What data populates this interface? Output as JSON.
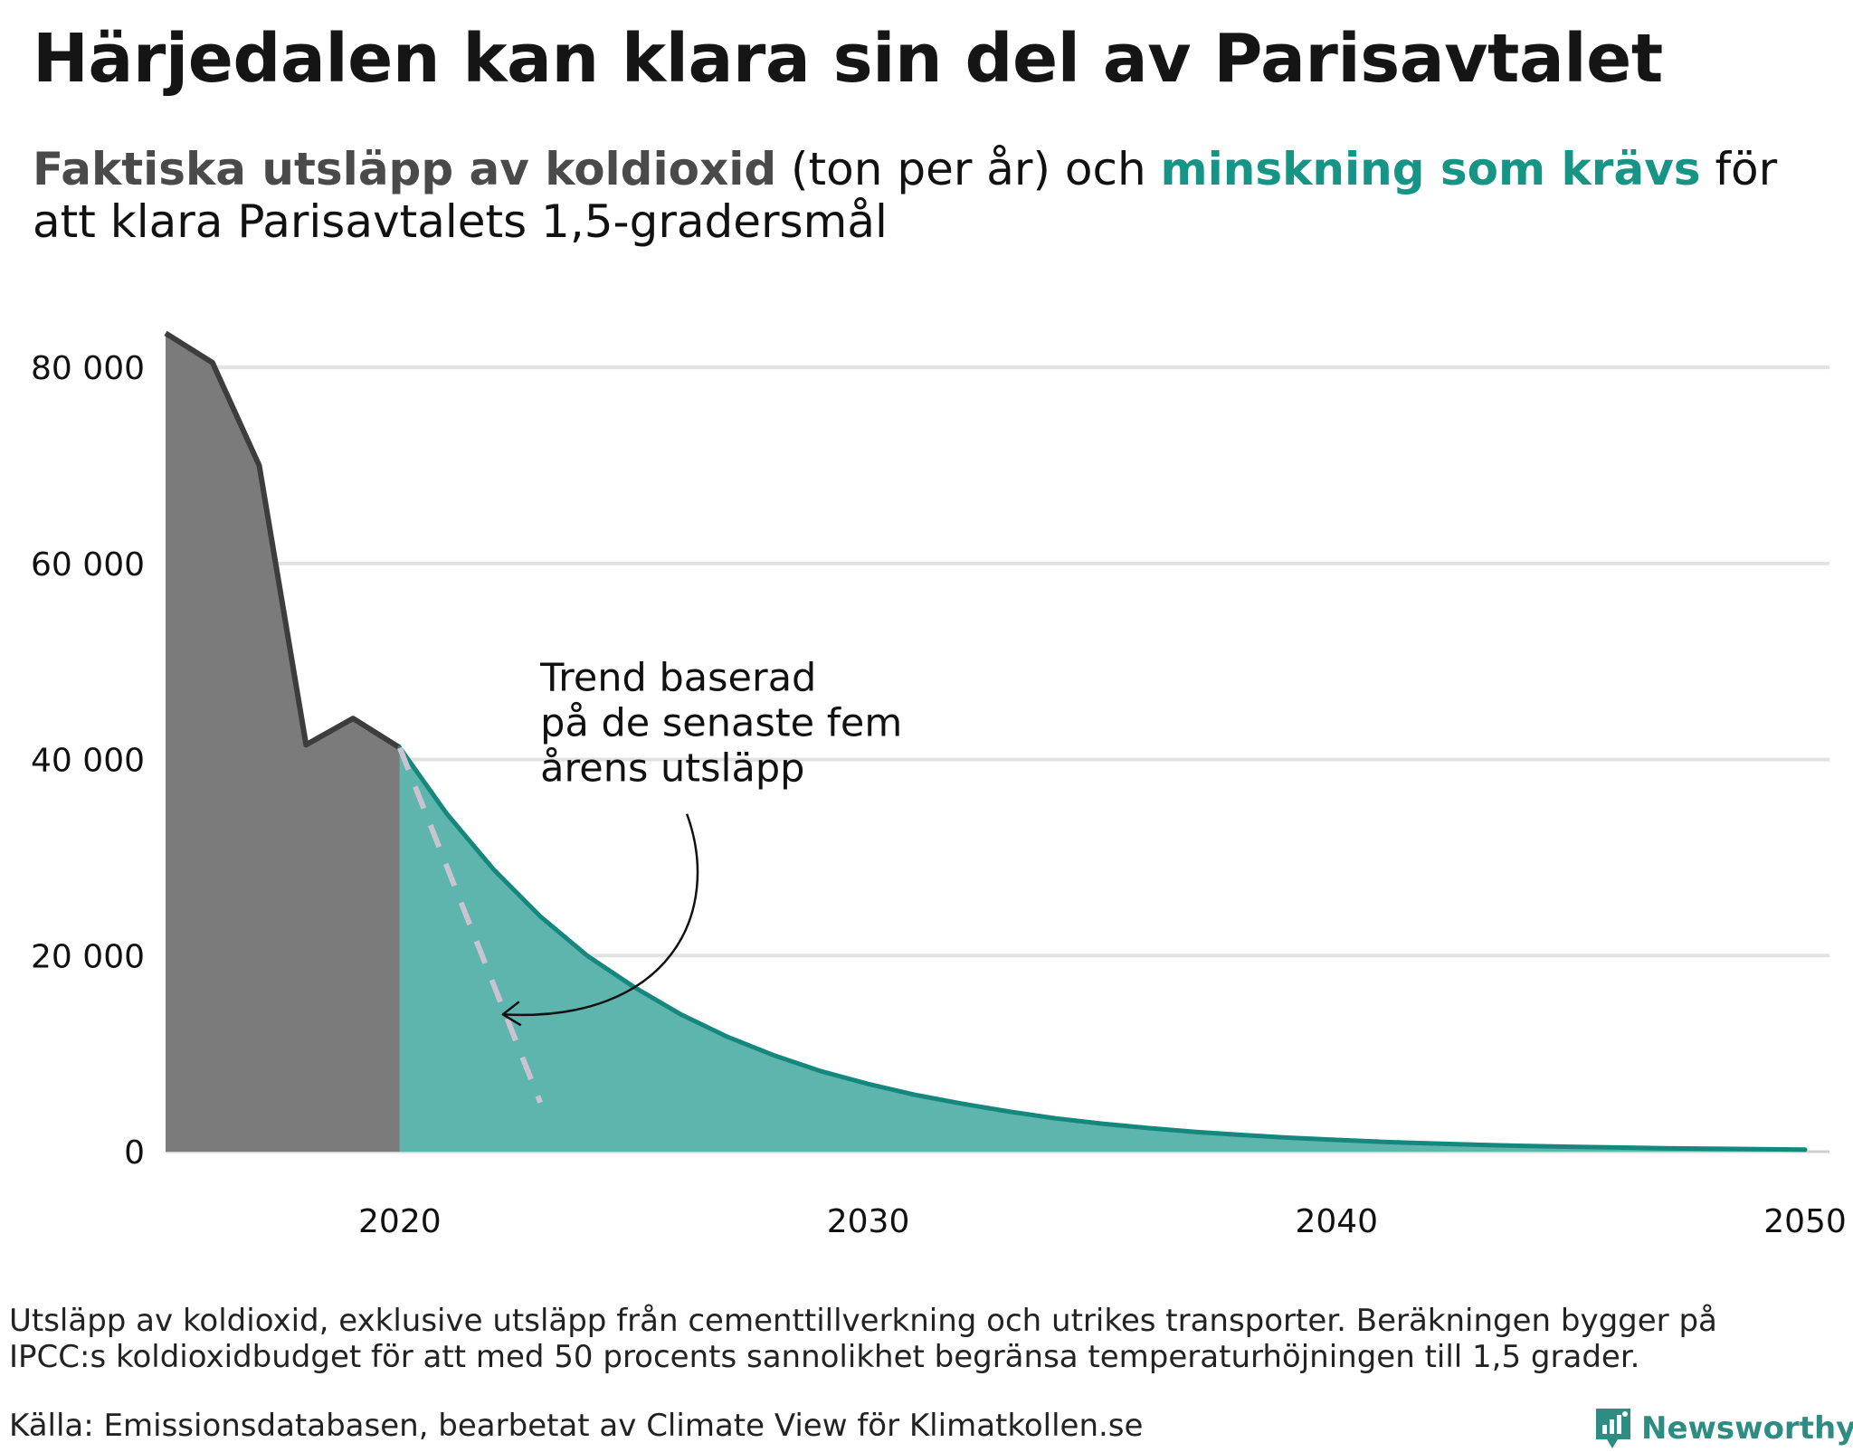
{
  "header": {
    "title": "Härjedalen kan klara sin del av Parisavtalet",
    "subtitle_part1": "Faktiska utsläpp av koldioxid",
    "subtitle_part2": " (ton per år) och ",
    "subtitle_part3": "minskning som krävs",
    "subtitle_part4": " för att klara Parisavtalets 1,5-gradersmål"
  },
  "colors": {
    "actual_fill": "#7b7b7b",
    "actual_line": "#3d3d3d",
    "required_fill": "#5db5ad",
    "required_line": "#15877c",
    "trend_line": "#c9c4cf",
    "grid": "#e2e2e2"
  },
  "chart_data": {
    "type": "area",
    "xlim": [
      2015,
      2050
    ],
    "ylim": [
      0,
      85000
    ],
    "y_ticks": [
      0,
      20000,
      40000,
      60000,
      80000
    ],
    "y_tick_labels": [
      "0",
      "20 000",
      "40 000",
      "60 000",
      "80 000"
    ],
    "x_ticks": [
      2020,
      2030,
      2040,
      2050
    ],
    "x_tick_labels": [
      "2020",
      "2030",
      "2040",
      "2050"
    ],
    "grid": true,
    "series": [
      {
        "x": [
          2015,
          2016,
          2017,
          2018,
          2019,
          2020
        ],
        "y": [
          83500,
          80500,
          70000,
          41500,
          44200,
          41200
        ]
      },
      {
        "x": [
          2020,
          2021,
          2022,
          2023,
          2024,
          2025,
          2026,
          2027,
          2028,
          2029,
          2030,
          2031,
          2032,
          2033,
          2034,
          2035,
          2036,
          2037,
          2038,
          2039,
          2040,
          2041,
          2042,
          2043,
          2044,
          2045,
          2046,
          2047,
          2048,
          2049,
          2050
        ],
        "y": [
          41200,
          34500,
          28800,
          24000,
          20000,
          16800,
          14000,
          11700,
          9800,
          8200,
          6900,
          5800,
          4900,
          4100,
          3400,
          2850,
          2400,
          2000,
          1700,
          1420,
          1200,
          1000,
          840,
          700,
          590,
          500,
          420,
          350,
          300,
          250,
          200
        ]
      },
      {
        "x": [
          2020,
          2023
        ],
        "y": [
          41200,
          5000
        ]
      }
    ],
    "annotation": {
      "lines": [
        "Trend baserad",
        "på de senaste fem",
        "årens utsläpp"
      ],
      "x": 2023.0,
      "y": 47000,
      "arrow_to": [
        2022.2,
        14000
      ]
    }
  },
  "footer": {
    "footnote": "Utsläpp av koldioxid, exklusive utsläpp från cementtillverkning och utrikes transporter. Beräkningen bygger på IPCC:s koldioxidbudget för att med 50 procents sannolikhet begränsa temperaturhöjningen till 1,5 grader.",
    "source": "Källa: Emissionsdatabasen, bearbetat av Climate View för Klimatkollen.se",
    "brand": "Newsworthy",
    "brand_icon": "newsworthy-logo-icon"
  }
}
